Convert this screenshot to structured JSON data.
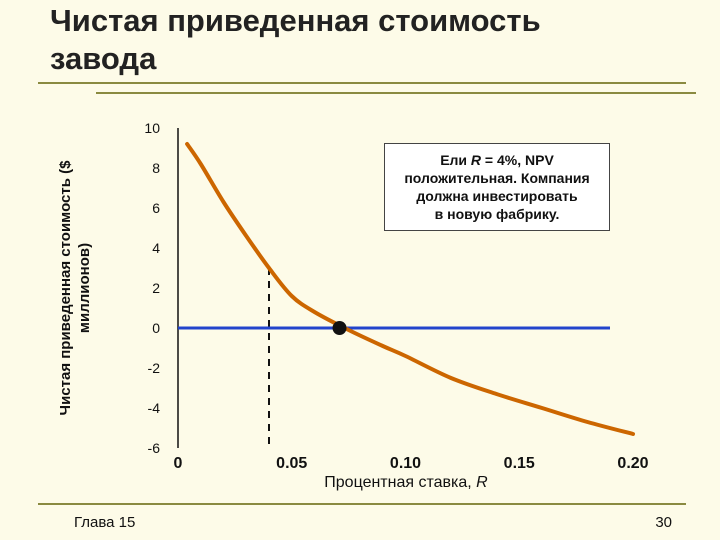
{
  "slide": {
    "title": "Чистая приведенная стоимость\nзавода",
    "footer_left": "Глава 15",
    "page_number": "30"
  },
  "chart_data": {
    "type": "line",
    "title": "",
    "ylabel": "Чистая приведенная стоимость ($ миллионов)",
    "xlabel_text": "Процентная ставка, ",
    "xlabel_var": "R",
    "xlim": [
      0,
      0.2
    ],
    "ylim": [
      -6,
      10
    ],
    "x_ticks": [
      "0",
      "0.05",
      "0.10",
      "0.15",
      "0.20"
    ],
    "y_ticks": [
      "10",
      "8",
      "6",
      "4",
      "2",
      "0",
      "-2",
      "-4",
      "-6"
    ],
    "series": [
      {
        "color": "#cc6600",
        "points": [
          [
            0.004,
            9.2
          ],
          [
            0.01,
            8.2
          ],
          [
            0.02,
            6.3
          ],
          [
            0.03,
            4.6
          ],
          [
            0.04,
            3.0
          ],
          [
            0.05,
            1.6
          ],
          [
            0.06,
            0.8
          ],
          [
            0.075,
            -0.1
          ],
          [
            0.09,
            -0.9
          ],
          [
            0.1,
            -1.4
          ],
          [
            0.12,
            -2.5
          ],
          [
            0.14,
            -3.3
          ],
          [
            0.16,
            -4.0
          ],
          [
            0.18,
            -4.7
          ],
          [
            0.2,
            -5.3
          ]
        ]
      }
    ],
    "zero_line_color": "#2244cc",
    "marker_point": [
      0.071,
      0
    ],
    "dashed_x": 0.04,
    "annotation": {
      "line1_prefix": "Ели ",
      "line1_var": "R",
      "line1_suffix": " = 4%, NPV",
      "line2": "положительная. Компания",
      "line3": "должна инвестировать",
      "line4": "в новую фабрику."
    }
  }
}
